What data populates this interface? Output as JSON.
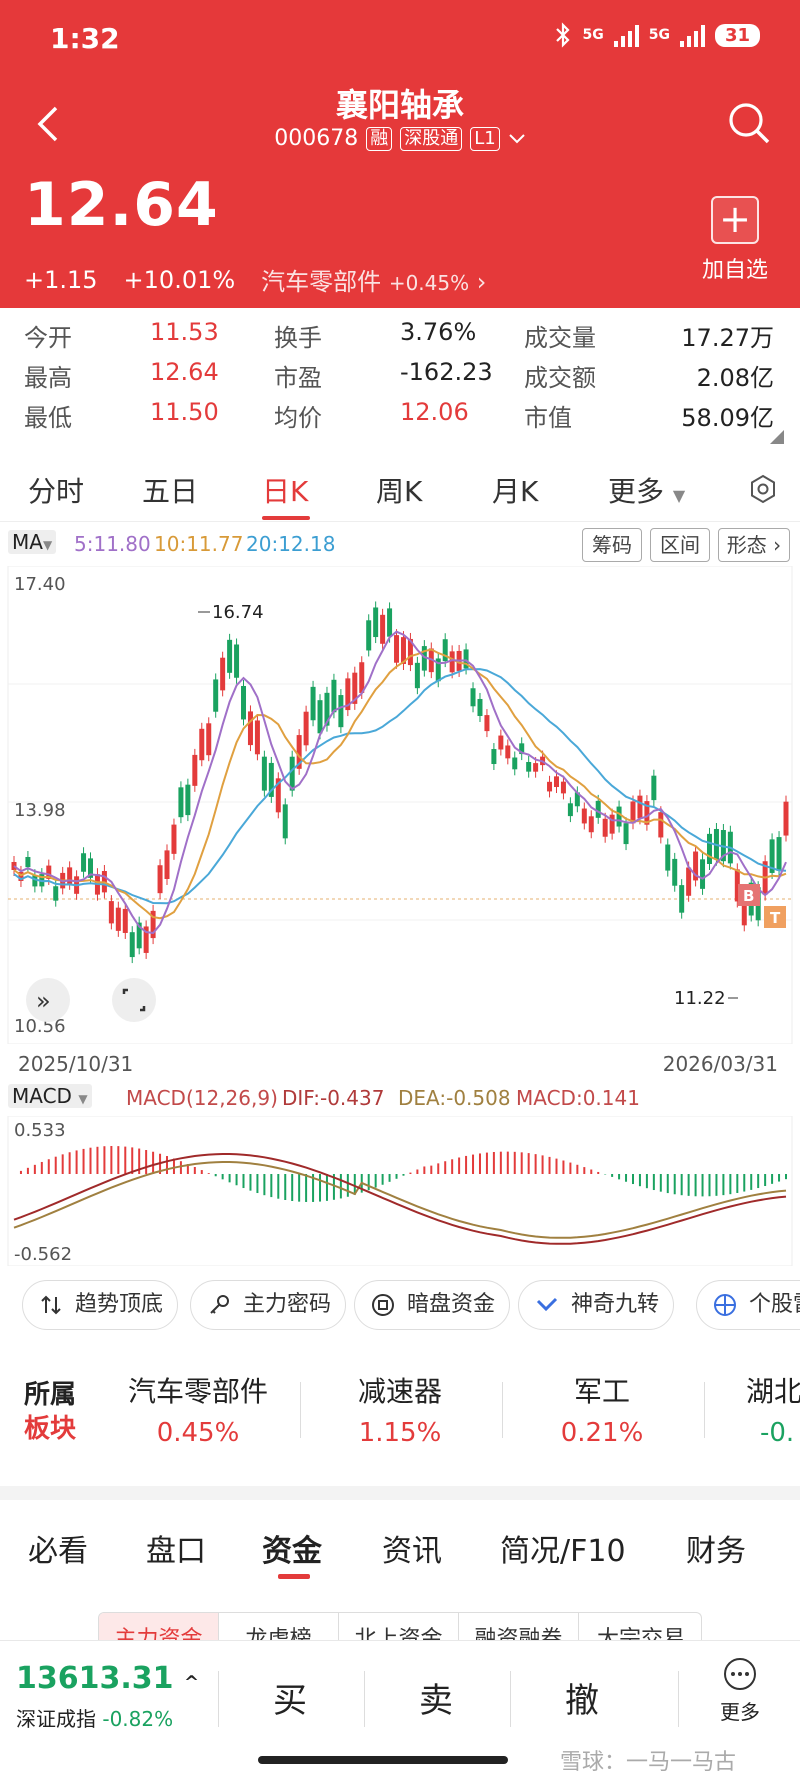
{
  "status": {
    "time": "1:32",
    "net1": "5G",
    "net2": "5G",
    "battery": "31"
  },
  "header": {
    "name": "襄阳轴承",
    "code": "000678",
    "tag1": "融",
    "tag2": "深股通",
    "tag3": "L1",
    "price": "12.64",
    "change": "+1.15",
    "change_pct": "+10.01%",
    "sector": "汽车零部件",
    "sector_chg": "+0.45%",
    "add_label": "加自选"
  },
  "quote": [
    [
      {
        "l": "今开",
        "v": "11.53"
      },
      {
        "l": "换手",
        "v": "3.76%"
      },
      {
        "l": "成交量",
        "v": "17.27万"
      }
    ],
    [
      {
        "l": "最高",
        "v": "12.64"
      },
      {
        "l": "市盈",
        "v": "-162.23"
      },
      {
        "l": "成交额",
        "v": "2.08亿"
      }
    ],
    [
      {
        "l": "最低",
        "v": "11.50"
      },
      {
        "l": "均价",
        "v": "12.06"
      },
      {
        "l": "市值",
        "v": "58.09亿"
      }
    ]
  ],
  "ktabs": [
    "分时",
    "五日",
    "日K",
    "周K",
    "月K",
    "更多"
  ],
  "ma": {
    "label": "MA",
    "ma5": "5:11.80",
    "ma10": "10:11.77",
    "ma20": "20:12.18",
    "btn1": "筹码",
    "btn2": "区间",
    "btn3": "形态"
  },
  "kchart": {
    "y_top": "17.40",
    "y_mid": "13.98",
    "y_bot": "10.56",
    "high_label": "16.74",
    "low_label": "11.22",
    "date_start": "2025/10/31",
    "date_end": "2026/03/31",
    "b_mark": "B",
    "t_mark": "T"
  },
  "macd": {
    "label": "MACD",
    "params": "MACD(12,26,9)",
    "dif": "DIF:-0.437",
    "dea": "DEA:-0.508",
    "macd": "MACD:0.141",
    "y_top": "0.533",
    "y_bot": "-0.562"
  },
  "tools": [
    "趋势顶底",
    "主力密码",
    "暗盘资金",
    "神奇九转",
    "个股雷"
  ],
  "sector": {
    "title1": "所属",
    "title2": "板块",
    "items": [
      {
        "n": "汽车零部件",
        "v": "0.45%"
      },
      {
        "n": "减速器",
        "v": "1.15%"
      },
      {
        "n": "军工",
        "v": "0.21%"
      },
      {
        "n": "湖北",
        "v": "-0."
      }
    ]
  },
  "btabs": [
    "必看",
    "盘口",
    "资金",
    "资讯",
    "简况/F10",
    "财务"
  ],
  "subtabs": [
    "主力资金",
    "龙虎榜",
    "北上资金",
    "融资融券",
    "大宗交易"
  ],
  "bottom": {
    "index_value": "13613.31",
    "index_name": "深证成指",
    "index_chg": "-0.82%",
    "buy": "买",
    "sell": "卖",
    "cancel": "撤",
    "more": "更多"
  },
  "watermark": "雪球：一马一马古",
  "colors": {
    "header": "#e5393a",
    "up": "#e33b3b",
    "down": "#1aa260",
    "ma5": "#a070c8",
    "ma10": "#e0a040",
    "ma20": "#4aa8d8"
  }
}
